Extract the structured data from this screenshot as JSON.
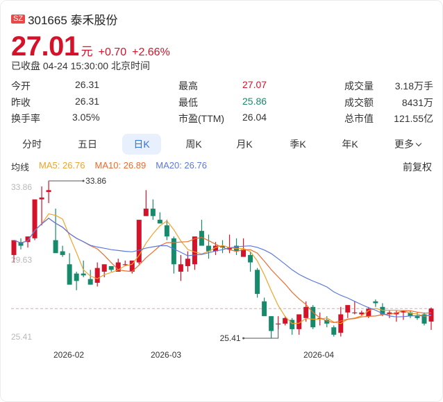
{
  "header": {
    "exchange_badge": "SZ",
    "title": "301665 泰禾股份",
    "price": "27.01",
    "unit": "元",
    "change": "+0.70",
    "change_pct": "+2.66%",
    "status": "已收盘 04-24 15:30:00 北京时间"
  },
  "stats": {
    "open_label": "今开",
    "open": "26.31",
    "prev_close_label": "昨收",
    "prev_close": "26.31",
    "turnover_label": "换手率",
    "turnover": "3.05%",
    "high_label": "最高",
    "high": "27.07",
    "low_label": "最低",
    "low": "25.86",
    "pe_label": "市盈(TTM)",
    "pe": "26.04",
    "volume_label": "成交量",
    "volume": "3.18万手",
    "amount_label": "成交额",
    "amount": "8431万",
    "mktcap_label": "总市值",
    "mktcap": "121.55亿"
  },
  "tabs": [
    {
      "label": "分时",
      "active": false
    },
    {
      "label": "五日",
      "active": false
    },
    {
      "label": "日K",
      "active": true
    },
    {
      "label": "周K",
      "active": false
    },
    {
      "label": "月K",
      "active": false
    },
    {
      "label": "季K",
      "active": false
    },
    {
      "label": "年K",
      "active": false
    },
    {
      "label": "更多",
      "active": false
    }
  ],
  "ma": {
    "label": "均线",
    "ma5": "MA5: 26.76",
    "ma10": "MA10: 26.89",
    "ma20": "MA20: 26.76",
    "adjust": "前复权"
  },
  "colors": {
    "up": "#d4132a",
    "down": "#178a6c",
    "ma5": "#f0a32a",
    "ma10": "#ef6a2a",
    "ma20": "#5b78e0",
    "accent": "#3370e8"
  },
  "chart_data": {
    "type": "candlestick",
    "title": "301665 泰禾股份 日K",
    "y_axis_labels": [
      "33.86",
      "29.63",
      "25.41"
    ],
    "ylim": [
      25.41,
      33.86
    ],
    "x_tick_labels": [
      "2026-02",
      "2026-03",
      "2026-04"
    ],
    "annotations": [
      {
        "text": "33.86",
        "type": "max"
      },
      {
        "text": "25.41",
        "type": "min"
      }
    ],
    "reference_line": 27.01,
    "legend": [
      "MA5",
      "MA10",
      "MA20"
    ],
    "candles": [
      {
        "o": 29.9,
        "h": 30.7,
        "l": 29.5,
        "c": 30.7
      },
      {
        "o": 30.6,
        "h": 30.8,
        "l": 30.2,
        "c": 30.4
      },
      {
        "o": 30.6,
        "h": 30.9,
        "l": 30.3,
        "c": 30.9
      },
      {
        "o": 30.8,
        "h": 32.2,
        "l": 30.7,
        "c": 32.9
      },
      {
        "o": 32.9,
        "h": 33.6,
        "l": 31.5,
        "c": 33.0
      },
      {
        "o": 33.3,
        "h": 33.86,
        "l": 32.7,
        "c": 33.4
      },
      {
        "o": 30.7,
        "h": 32.4,
        "l": 30.2,
        "c": 30.0
      },
      {
        "o": 30.1,
        "h": 30.4,
        "l": 29.8,
        "c": 29.9
      },
      {
        "o": 29.4,
        "h": 30.0,
        "l": 28.8,
        "c": 28.3
      },
      {
        "o": 28.9,
        "h": 29.0,
        "l": 28.0,
        "c": 28.5
      },
      {
        "o": 28.9,
        "h": 29.6,
        "l": 28.7,
        "c": 28.8
      },
      {
        "o": 28.6,
        "h": 29.1,
        "l": 28.4,
        "c": 28.3
      },
      {
        "o": 28.4,
        "h": 29.5,
        "l": 28.2,
        "c": 29.2
      },
      {
        "o": 29.0,
        "h": 29.3,
        "l": 28.7,
        "c": 29.4
      },
      {
        "o": 29.3,
        "h": 29.3,
        "l": 29.0,
        "c": 29.1
      },
      {
        "o": 29.0,
        "h": 29.7,
        "l": 29.0,
        "c": 29.5
      },
      {
        "o": 29.4,
        "h": 29.6,
        "l": 29.3,
        "c": 29.4
      },
      {
        "o": 29.0,
        "h": 29.4,
        "l": 28.9,
        "c": 29.6
      },
      {
        "o": 29.5,
        "h": 31.6,
        "l": 29.4,
        "c": 31.8
      },
      {
        "o": 32.0,
        "h": 33.4,
        "l": 32.0,
        "c": 32.4
      },
      {
        "o": 32.4,
        "h": 32.9,
        "l": 31.8,
        "c": 32.0
      },
      {
        "o": 31.8,
        "h": 32.2,
        "l": 31.6,
        "c": 31.6
      },
      {
        "o": 31.5,
        "h": 31.8,
        "l": 30.7,
        "c": 30.9
      },
      {
        "o": 30.8,
        "h": 30.9,
        "l": 28.9,
        "c": 29.4
      },
      {
        "o": 29.0,
        "h": 29.9,
        "l": 28.5,
        "c": 29.4
      },
      {
        "o": 29.3,
        "h": 30.1,
        "l": 29.0,
        "c": 29.7
      },
      {
        "o": 29.4,
        "h": 30.7,
        "l": 29.1,
        "c": 30.9
      },
      {
        "o": 31.2,
        "h": 31.8,
        "l": 30.8,
        "c": 30.4
      },
      {
        "o": 30.4,
        "h": 31.0,
        "l": 29.7,
        "c": 30.1
      },
      {
        "o": 30.1,
        "h": 30.6,
        "l": 29.9,
        "c": 30.4
      },
      {
        "o": 30.4,
        "h": 30.7,
        "l": 30.0,
        "c": 30.3
      },
      {
        "o": 30.2,
        "h": 31.0,
        "l": 30.0,
        "c": 30.3
      },
      {
        "o": 30.4,
        "h": 30.8,
        "l": 29.9,
        "c": 30.1
      },
      {
        "o": 29.8,
        "h": 30.8,
        "l": 29.8,
        "c": 30.2
      },
      {
        "o": 29.9,
        "h": 30.1,
        "l": 29.0,
        "c": 29.5
      },
      {
        "o": 29.1,
        "h": 29.2,
        "l": 27.6,
        "c": 27.8
      },
      {
        "o": 27.4,
        "h": 27.6,
        "l": 26.8,
        "c": 26.6
      },
      {
        "o": 26.6,
        "h": 26.6,
        "l": 25.41,
        "c": 25.8
      },
      {
        "o": 26.2,
        "h": 26.6,
        "l": 25.9,
        "c": 26.2
      },
      {
        "o": 26.2,
        "h": 26.6,
        "l": 26.1,
        "c": 26.5
      },
      {
        "o": 26.4,
        "h": 26.5,
        "l": 25.6,
        "c": 25.9
      },
      {
        "o": 25.9,
        "h": 26.6,
        "l": 25.6,
        "c": 26.7
      },
      {
        "o": 26.5,
        "h": 27.4,
        "l": 26.3,
        "c": 27.1
      },
      {
        "o": 27.1,
        "h": 27.2,
        "l": 25.9,
        "c": 26.0
      },
      {
        "o": 26.5,
        "h": 26.8,
        "l": 26.1,
        "c": 26.5
      },
      {
        "o": 26.4,
        "h": 26.6,
        "l": 26.0,
        "c": 26.2
      },
      {
        "o": 26.0,
        "h": 26.1,
        "l": 25.5,
        "c": 25.6
      },
      {
        "o": 25.7,
        "h": 27.1,
        "l": 25.5,
        "c": 26.7
      },
      {
        "o": 26.8,
        "h": 27.1,
        "l": 26.5,
        "c": 27.2
      },
      {
        "o": 26.8,
        "h": 27.4,
        "l": 26.7,
        "c": 26.8
      },
      {
        "o": 26.7,
        "h": 26.9,
        "l": 26.6,
        "c": 26.8
      },
      {
        "o": 26.6,
        "h": 27.1,
        "l": 26.5,
        "c": 27.0
      },
      {
        "o": 27.4,
        "h": 27.5,
        "l": 27.1,
        "c": 27.3
      },
      {
        "o": 27.1,
        "h": 27.3,
        "l": 26.6,
        "c": 26.7
      },
      {
        "o": 26.7,
        "h": 26.9,
        "l": 26.5,
        "c": 26.8
      },
      {
        "o": 26.7,
        "h": 26.9,
        "l": 26.3,
        "c": 26.8
      },
      {
        "o": 26.8,
        "h": 26.9,
        "l": 26.4,
        "c": 26.9
      },
      {
        "o": 26.8,
        "h": 26.9,
        "l": 26.5,
        "c": 26.6
      },
      {
        "o": 26.6,
        "h": 26.8,
        "l": 26.4,
        "c": 26.5
      },
      {
        "o": 26.7,
        "h": 26.8,
        "l": 26.1,
        "c": 26.2
      },
      {
        "o": 26.31,
        "h": 27.07,
        "l": 25.86,
        "c": 27.01
      }
    ]
  }
}
